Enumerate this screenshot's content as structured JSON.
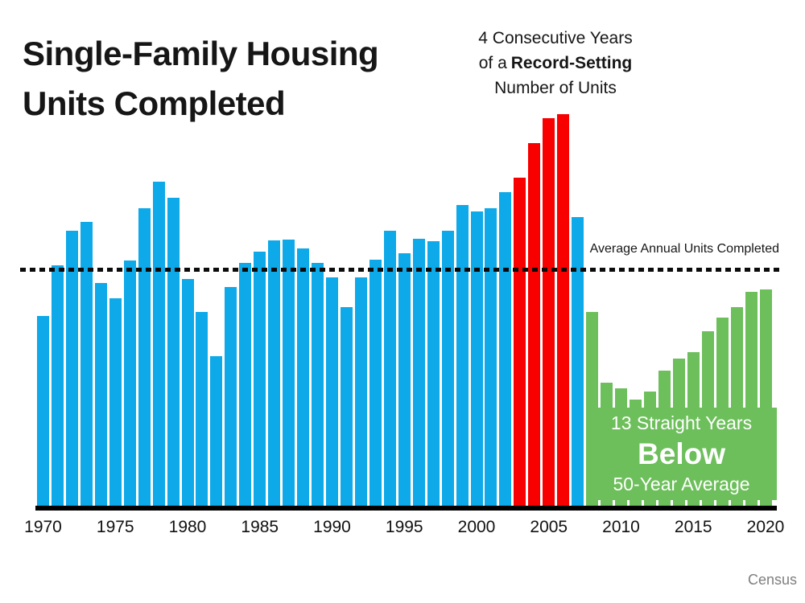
{
  "title": {
    "line1": "Single-Family Housing",
    "line2": "Units Completed"
  },
  "record_annotation": {
    "line1": "4 Consecutive Years",
    "line2_prefix": "of a",
    "line2_bold": "Record-Setting",
    "line3": "Number of Units"
  },
  "average_line_label": "Average Annual Units Completed",
  "below_average_callout": {
    "line1": "13 Straight Years",
    "line2": "Below",
    "line3": "50-Year Average"
  },
  "source_credit": "Census",
  "colors": {
    "bar_blue": "#0DA9E9",
    "bar_red": "#F80000",
    "bar_green": "#6DBF5B",
    "callout_text": "#FFFFFF",
    "dashed_line": "#0B0B0B",
    "axis_line": "#000000"
  },
  "chart_data": {
    "type": "bar",
    "title": "Single-Family Housing Units Completed",
    "xlabel": "",
    "ylabel": "",
    "units_hint": "thousands of units, estimated from bar heights",
    "x": [
      1970,
      1971,
      1972,
      1973,
      1974,
      1975,
      1976,
      1977,
      1978,
      1979,
      1980,
      1981,
      1982,
      1983,
      1984,
      1985,
      1986,
      1987,
      1988,
      1989,
      1990,
      1991,
      1992,
      1993,
      1994,
      1995,
      1996,
      1997,
      1998,
      1999,
      2000,
      2001,
      2002,
      2003,
      2004,
      2005,
      2006,
      2007,
      2008,
      2009,
      2010,
      2011,
      2012,
      2013,
      2014,
      2015,
      2016,
      2017,
      2018,
      2019,
      2020
    ],
    "values": [
      802,
      1014,
      1160,
      1197,
      940,
      875,
      1034,
      1258,
      1369,
      1301,
      957,
      819,
      632,
      924,
      1025,
      1072,
      1120,
      1123,
      1085,
      1026,
      966,
      838,
      964,
      1039,
      1160,
      1066,
      1129,
      1116,
      1160,
      1270,
      1242,
      1256,
      1325,
      1386,
      1531,
      1636,
      1654,
      1218,
      819,
      520,
      496,
      447,
      483,
      569,
      620,
      648,
      738,
      795,
      840,
      903,
      912
    ],
    "x_tick_labels": [
      "1970",
      "1975",
      "1980",
      "1985",
      "1990",
      "1995",
      "2000",
      "2005",
      "2010",
      "2015",
      "2020"
    ],
    "average_line": {
      "label": "Average Annual Units Completed",
      "approx_value": 1010,
      "style": "black dashed horizontal line spanning full chart width"
    },
    "segments": {
      "record_setting_years": [
        2003,
        2004,
        2005,
        2006
      ],
      "below_average_start_year": 2008,
      "below_average_end_year": 2020
    },
    "ylim": [
      0,
      1750
    ],
    "grid": false,
    "legend": false
  }
}
